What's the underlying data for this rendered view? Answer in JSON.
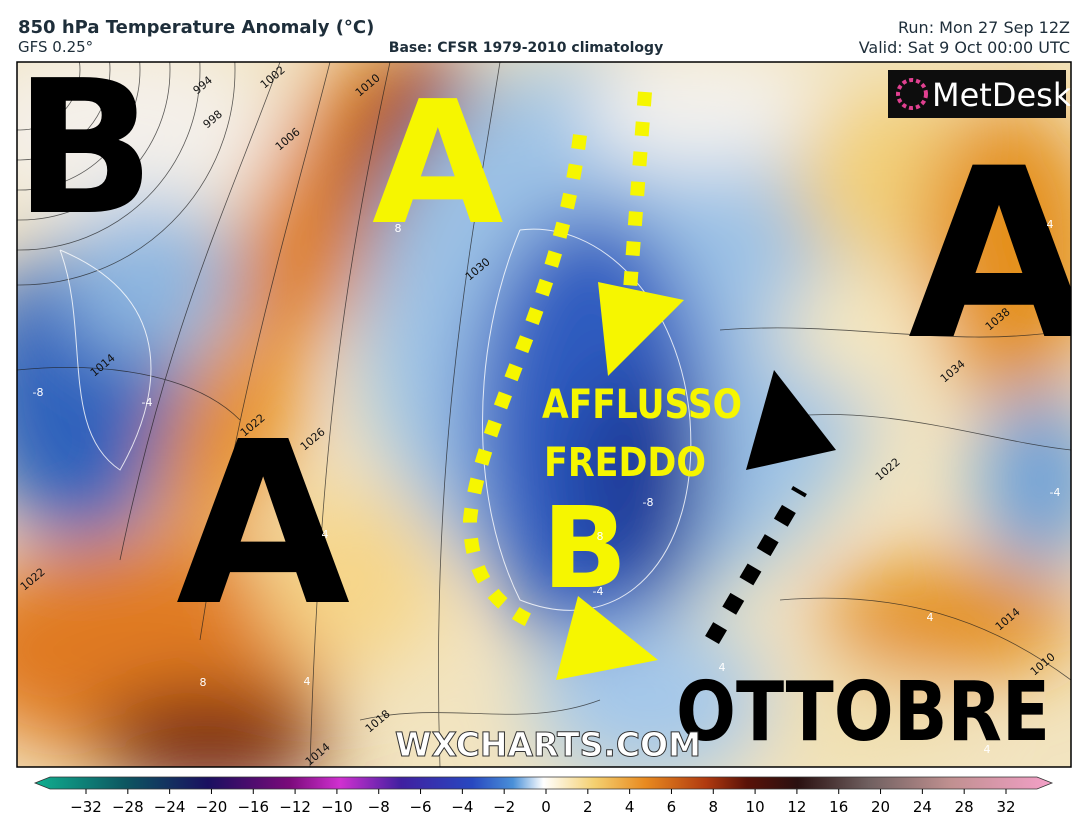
{
  "header": {
    "title": "850 hPa Temperature Anomaly (°C)",
    "model": "GFS 0.25°",
    "base": "Base: CFSR 1979-2010 climatology",
    "run": "Run: Mon 27 Sep 12Z",
    "valid": "Valid: Sat 9 Oct 00:00 UTC"
  },
  "map": {
    "annotations": [
      "B",
      "A",
      "A",
      "A",
      "B",
      "AFFLUSSO",
      "FREDDO",
      "OTTOBRE"
    ],
    "isobar_labels": [
      "994",
      "998",
      "1002",
      "1006",
      "1010",
      "1014",
      "1022",
      "1026",
      "1030",
      "1038",
      "1034",
      "1022",
      "1014",
      "1010",
      "1018",
      "1014",
      "1022"
    ],
    "anomaly_labels": [
      "8",
      "-8",
      "-4",
      "4",
      "8",
      "4",
      "-8",
      "8",
      "-4",
      "4",
      "4",
      "4",
      "-4",
      "4"
    ],
    "watermark": "WXCHARTS.COM",
    "logo": "MetDesk"
  },
  "colorbar": {
    "ticks": [
      {
        "value": -32,
        "label": "−32"
      },
      {
        "value": -28,
        "label": "−28"
      },
      {
        "value": -24,
        "label": "−24"
      },
      {
        "value": -20,
        "label": "−20"
      },
      {
        "value": -16,
        "label": "−16"
      },
      {
        "value": -12,
        "label": "−12"
      },
      {
        "value": -10,
        "label": "−10"
      },
      {
        "value": -8,
        "label": "−8"
      },
      {
        "value": -6,
        "label": "−6"
      },
      {
        "value": -4,
        "label": "−4"
      },
      {
        "value": -2,
        "label": "−2"
      },
      0,
      2,
      4,
      6,
      8,
      10,
      12,
      16,
      20,
      24,
      28,
      32
    ]
  }
}
